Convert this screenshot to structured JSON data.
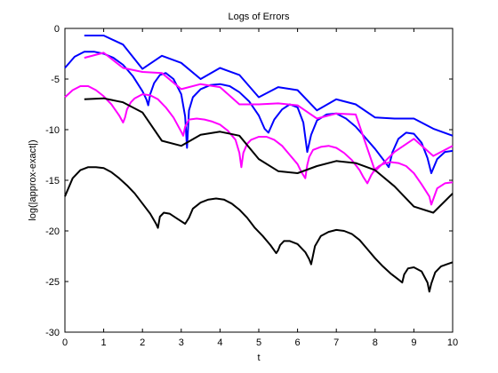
{
  "chart_data": {
    "type": "line",
    "title": "Logs of Errors",
    "xlabel": "t",
    "ylabel": "log(|approx-exact|)",
    "xlim": [
      0,
      10
    ],
    "ylim": [
      -30,
      0
    ],
    "xticks": [
      "0",
      "1",
      "2",
      "3",
      "4",
      "5",
      "6",
      "7",
      "8",
      "9",
      "10"
    ],
    "yticks": [
      "0",
      "-5",
      "-10",
      "-15",
      "-20",
      "-25",
      "-30"
    ],
    "xtick_values": [
      0,
      1,
      2,
      3,
      4,
      5,
      6,
      7,
      8,
      9,
      10
    ],
    "ytick_values": [
      0,
      -5,
      -10,
      -15,
      -20,
      -25,
      -30
    ],
    "grid": false,
    "legend": "none",
    "series": [
      {
        "color": "#0000ff",
        "x": [
          0.5,
          1.0,
          1.5,
          2.0,
          2.5,
          3.0,
          3.5,
          4.0,
          4.5,
          5.0,
          5.5,
          6.0,
          6.5,
          7.0,
          7.5,
          8.0,
          8.5,
          9.0,
          9.5,
          10.0
        ],
        "y": [
          -0.7,
          -0.7,
          -1.6,
          -4.0,
          -2.7,
          -3.4,
          -5.0,
          -3.9,
          -4.6,
          -6.8,
          -5.8,
          -6.1,
          -8.1,
          -7.0,
          -7.5,
          -8.8,
          -8.9,
          -8.9,
          -9.9,
          -10.6
        ]
      },
      {
        "color": "#0000ff",
        "x": [
          0.0,
          0.25,
          0.5,
          0.75,
          1.0,
          1.25,
          1.5,
          1.75,
          2.0,
          2.1,
          2.15,
          2.2,
          2.3,
          2.45,
          2.6,
          2.8,
          3.0,
          3.1,
          3.15,
          3.2,
          3.3,
          3.5,
          3.75,
          4.0,
          4.25,
          4.5,
          4.75,
          5.0,
          5.15,
          5.25,
          5.4,
          5.6,
          5.8,
          6.0,
          6.15,
          6.25,
          6.35,
          6.5,
          6.75,
          7.0,
          7.25,
          7.5,
          7.75,
          8.0,
          8.2,
          8.35,
          8.45,
          8.6,
          8.8,
          9.0,
          9.2,
          9.35,
          9.45,
          9.6,
          9.8,
          10.0
        ],
        "y": [
          -3.9,
          -2.8,
          -2.3,
          -2.3,
          -2.5,
          -2.9,
          -3.6,
          -4.7,
          -6.2,
          -7.0,
          -7.6,
          -6.5,
          -5.4,
          -4.6,
          -4.4,
          -5.0,
          -6.5,
          -8.7,
          -11.8,
          -8.1,
          -6.8,
          -6.0,
          -5.6,
          -5.5,
          -5.7,
          -6.3,
          -7.2,
          -8.6,
          -9.9,
          -10.3,
          -9.0,
          -8.0,
          -7.5,
          -7.8,
          -9.3,
          -12.2,
          -10.5,
          -9.1,
          -8.5,
          -8.4,
          -8.9,
          -9.7,
          -10.8,
          -11.9,
          -12.9,
          -13.7,
          -12.2,
          -10.9,
          -10.3,
          -10.4,
          -11.3,
          -12.8,
          -14.3,
          -12.9,
          -12.2,
          -12.1
        ]
      },
      {
        "color": "#ff00ff",
        "x": [
          0.5,
          1.0,
          1.5,
          2.0,
          2.5,
          3.0,
          3.5,
          4.0,
          4.5,
          5.0,
          5.5,
          6.0,
          6.5,
          7.0,
          7.5,
          8.0,
          8.5,
          9.0,
          9.5,
          10.0
        ],
        "y": [
          -2.9,
          -2.4,
          -3.9,
          -4.3,
          -4.4,
          -6.0,
          -5.5,
          -5.8,
          -7.5,
          -7.5,
          -7.4,
          -7.6,
          -8.9,
          -8.4,
          -8.5,
          -14.1,
          -12.2,
          -10.9,
          -12.6,
          -11.6
        ]
      },
      {
        "color": "#ff00ff",
        "x": [
          0.0,
          0.2,
          0.4,
          0.6,
          0.8,
          1.0,
          1.2,
          1.4,
          1.5,
          1.55,
          1.6,
          1.7,
          1.8,
          2.0,
          2.2,
          2.4,
          2.6,
          2.8,
          3.0,
          3.05,
          3.1,
          3.2,
          3.4,
          3.6,
          3.8,
          4.0,
          4.2,
          4.4,
          4.5,
          4.55,
          4.6,
          4.7,
          4.8,
          5.0,
          5.2,
          5.4,
          5.6,
          5.8,
          6.0,
          6.1,
          6.2,
          6.25,
          6.3,
          6.4,
          6.6,
          6.8,
          7.0,
          7.2,
          7.4,
          7.6,
          7.7,
          7.8,
          7.9,
          8.0,
          8.1,
          8.2,
          8.4,
          8.6,
          8.8,
          9.0,
          9.2,
          9.4,
          9.45,
          9.6,
          9.8,
          10.0
        ],
        "y": [
          -6.8,
          -6.1,
          -5.7,
          -5.7,
          -6.1,
          -6.7,
          -7.5,
          -8.6,
          -9.3,
          -8.8,
          -8.0,
          -7.3,
          -6.9,
          -6.5,
          -6.6,
          -7.0,
          -7.8,
          -8.8,
          -10.2,
          -10.6,
          -9.7,
          -9.0,
          -8.9,
          -9.0,
          -9.2,
          -9.5,
          -10.1,
          -11.0,
          -12.3,
          -13.7,
          -12.3,
          -11.4,
          -11.0,
          -10.7,
          -10.7,
          -11.0,
          -11.6,
          -12.5,
          -13.4,
          -14.2,
          -14.8,
          -13.5,
          -12.7,
          -12.0,
          -11.7,
          -11.6,
          -11.8,
          -12.3,
          -13.0,
          -14.0,
          -14.7,
          -15.3,
          -14.5,
          -13.9,
          -13.6,
          -13.4,
          -13.2,
          -13.3,
          -13.6,
          -14.3,
          -15.4,
          -16.6,
          -17.4,
          -15.8,
          -15.3,
          -15.2
        ]
      },
      {
        "color": "#000000",
        "x": [
          0.5,
          1.0,
          1.5,
          2.0,
          2.5,
          3.0,
          3.5,
          4.0,
          4.5,
          5.0,
          5.5,
          6.0,
          6.5,
          7.0,
          7.5,
          8.0,
          8.5,
          9.0,
          9.5,
          10.0
        ],
        "y": [
          -7.0,
          -6.9,
          -7.3,
          -8.3,
          -11.1,
          -11.6,
          -10.5,
          -10.2,
          -10.6,
          -12.9,
          -14.1,
          -14.3,
          -13.6,
          -13.1,
          -13.3,
          -14.0,
          -15.6,
          -17.6,
          -18.2,
          -16.3
        ]
      },
      {
        "color": "#000000",
        "x": [
          0.0,
          0.2,
          0.4,
          0.6,
          0.8,
          1.0,
          1.2,
          1.4,
          1.6,
          1.8,
          2.0,
          2.2,
          2.35,
          2.4,
          2.45,
          2.55,
          2.7,
          2.9,
          3.1,
          3.2,
          3.3,
          3.5,
          3.7,
          3.9,
          4.1,
          4.3,
          4.5,
          4.7,
          4.9,
          5.1,
          5.3,
          5.45,
          5.5,
          5.55,
          5.65,
          5.8,
          6.0,
          6.2,
          6.3,
          6.35,
          6.45,
          6.6,
          6.8,
          7.0,
          7.2,
          7.4,
          7.6,
          7.8,
          8.0,
          8.2,
          8.4,
          8.6,
          8.7,
          8.75,
          8.85,
          9.0,
          9.2,
          9.35,
          9.4,
          9.45,
          9.55,
          9.7,
          9.85,
          10.0
        ],
        "y": [
          -16.6,
          -14.8,
          -14.0,
          -13.7,
          -13.7,
          -13.8,
          -14.2,
          -14.8,
          -15.5,
          -16.3,
          -17.3,
          -18.3,
          -19.3,
          -19.7,
          -18.6,
          -18.2,
          -18.3,
          -18.8,
          -19.3,
          -18.7,
          -17.8,
          -17.2,
          -16.9,
          -16.8,
          -16.9,
          -17.3,
          -17.9,
          -18.7,
          -19.7,
          -20.5,
          -21.4,
          -22.2,
          -21.9,
          -21.4,
          -21.0,
          -21.0,
          -21.3,
          -22.1,
          -22.8,
          -23.3,
          -21.5,
          -20.5,
          -20.1,
          -19.9,
          -20.0,
          -20.3,
          -20.9,
          -21.8,
          -22.7,
          -23.5,
          -24.2,
          -24.8,
          -25.1,
          -24.3,
          -23.7,
          -23.6,
          -24.0,
          -25.1,
          -26.0,
          -25.2,
          -24.1,
          -23.5,
          -23.3,
          -23.1
        ]
      }
    ]
  }
}
